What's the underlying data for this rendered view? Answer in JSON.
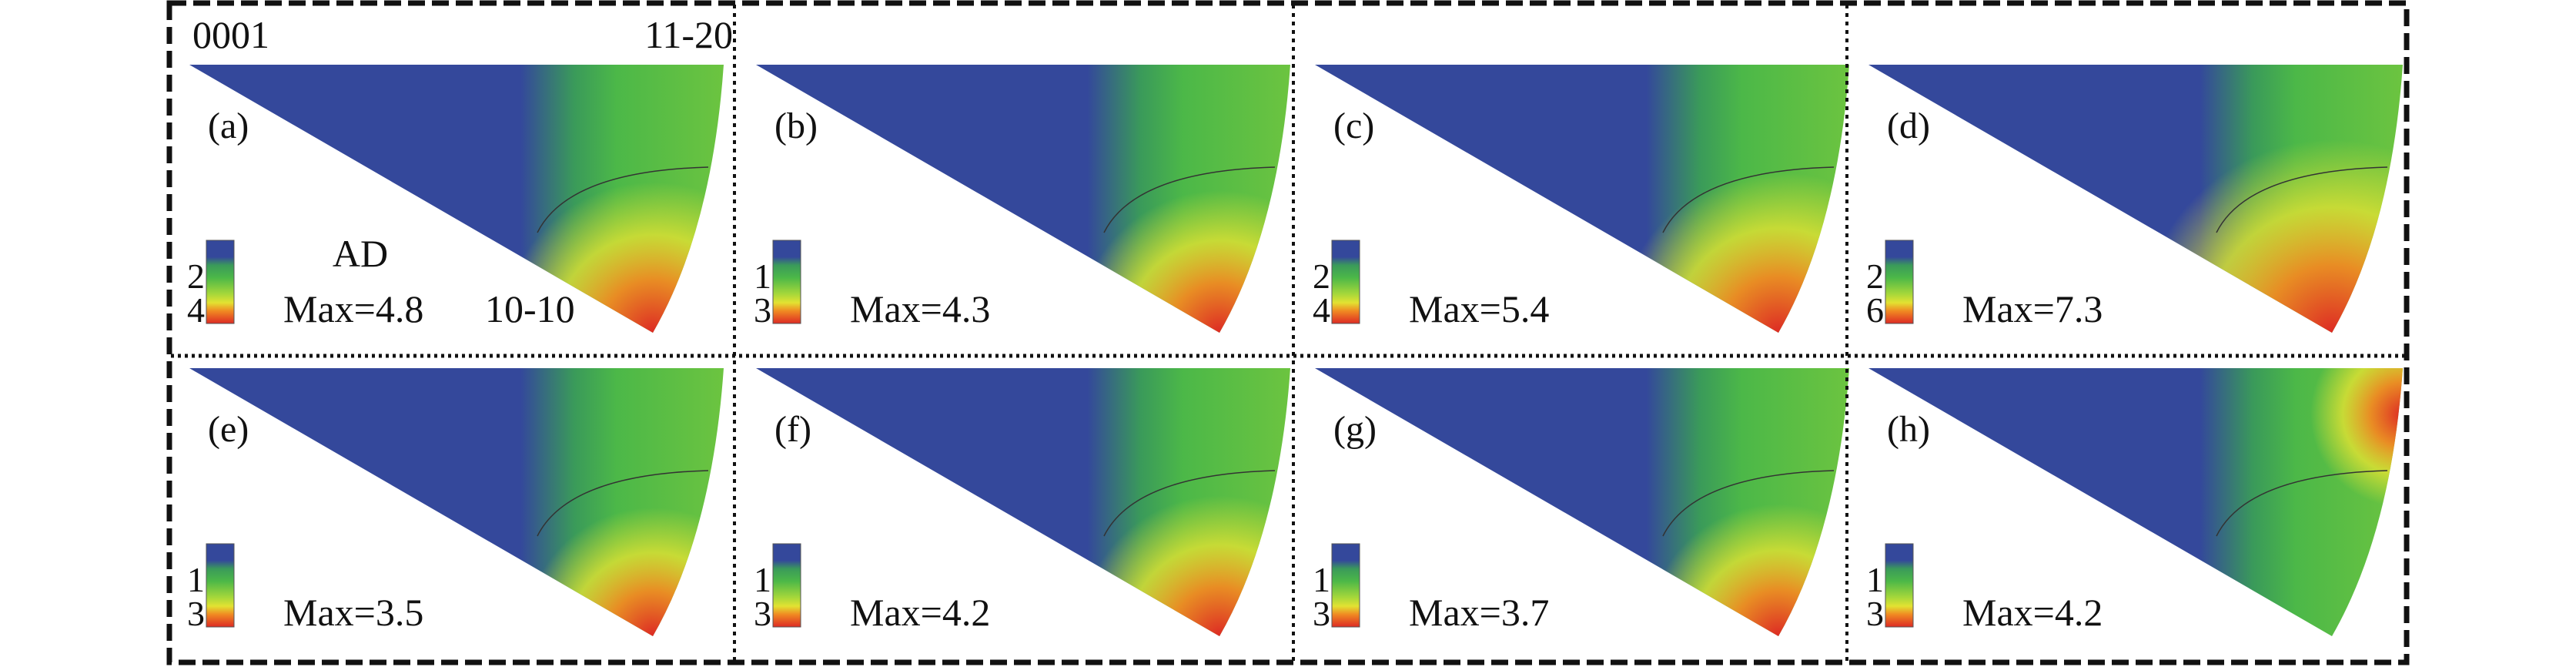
{
  "corner_labels": {
    "top_left": "0001",
    "top_right": "11-20",
    "bottom": "10-10"
  },
  "direction_label": "AD",
  "colors": {
    "low": "#34489b",
    "mid": "#4cb848",
    "high_yellow": "#e2e232",
    "high": "#dd2a24"
  },
  "panels": [
    {
      "label": "(a)",
      "max_text": "Max=4.8",
      "max": 4.8,
      "scale_ticks": [
        "2",
        "4"
      ]
    },
    {
      "label": "(b)",
      "max_text": "Max=4.3",
      "max": 4.3,
      "scale_ticks": [
        "1",
        "3"
      ]
    },
    {
      "label": "(c)",
      "max_text": "Max=5.4",
      "max": 5.4,
      "scale_ticks": [
        "2",
        "4"
      ]
    },
    {
      "label": "(d)",
      "max_text": "Max=7.3",
      "max": 7.3,
      "scale_ticks": [
        "2",
        "6"
      ]
    },
    {
      "label": "(e)",
      "max_text": "Max=3.5",
      "max": 3.5,
      "scale_ticks": [
        "1",
        "3"
      ]
    },
    {
      "label": "(f)",
      "max_text": "Max=4.2",
      "max": 4.2,
      "scale_ticks": [
        "1",
        "3"
      ]
    },
    {
      "label": "(g)",
      "max_text": "Max=3.7",
      "max": 3.7,
      "scale_ticks": [
        "1",
        "3"
      ]
    },
    {
      "label": "(h)",
      "max_text": "Max=4.2",
      "max": 4.2,
      "scale_ticks": [
        "1",
        "3"
      ]
    }
  ]
}
